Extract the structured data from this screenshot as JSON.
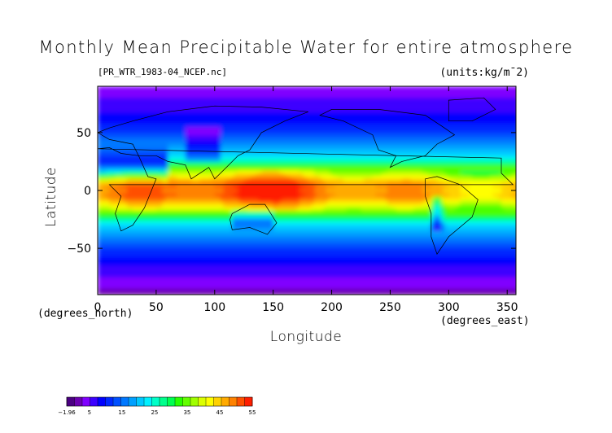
{
  "chart_data": {
    "type": "heatmap",
    "title": "Monthly Mean Precipitable Water for entire atmosphere",
    "source_file": "[PR_WTR_1983-04_NCEP.nc]",
    "units": "(units:kg/m¯2)",
    "xlabel": "Longitude",
    "ylabel": "Latitude",
    "x_unit_note": "(degrees_east)",
    "y_unit_note": "(degrees_north)",
    "xlim": [
      0,
      357.5
    ],
    "ylim": [
      -90,
      90
    ],
    "x_ticks": [
      "0",
      "50",
      "100",
      "150",
      "200",
      "250",
      "300",
      "350"
    ],
    "x_tick_values": [
      0,
      50,
      100,
      150,
      200,
      250,
      300,
      350
    ],
    "y_ticks": [
      "50",
      "0",
      "-50"
    ],
    "y_tick_values": [
      50,
      0,
      -50
    ],
    "colorbar": {
      "tick_labels": [
        "-1.96",
        "5",
        "15",
        "25",
        "35",
        "45",
        "55"
      ],
      "tick_values": [
        -1.96,
        5,
        15,
        25,
        35,
        45,
        55
      ],
      "colors": [
        "#4b0082",
        "#6a00b0",
        "#8000ff",
        "#3c00ff",
        "#0000ff",
        "#0028ff",
        "#0050ff",
        "#0078ff",
        "#00a0ff",
        "#00c8ff",
        "#00f0ff",
        "#00ffc8",
        "#00ff8c",
        "#00ff50",
        "#28ff00",
        "#64ff00",
        "#a0ff00",
        "#dcff00",
        "#ffff00",
        "#ffd200",
        "#ffaa00",
        "#ff8200",
        "#ff5000",
        "#ff1e00"
      ]
    },
    "lat_profile": {
      "lat": [
        90,
        75,
        60,
        45,
        30,
        15,
        5,
        0,
        -5,
        -15,
        -30,
        -45,
        -60,
        -75,
        -90
      ],
      "precipitable_water": [
        3,
        6,
        9,
        14,
        22,
        38,
        50,
        48,
        50,
        40,
        22,
        14,
        9,
        5,
        2
      ]
    },
    "grid": false
  }
}
